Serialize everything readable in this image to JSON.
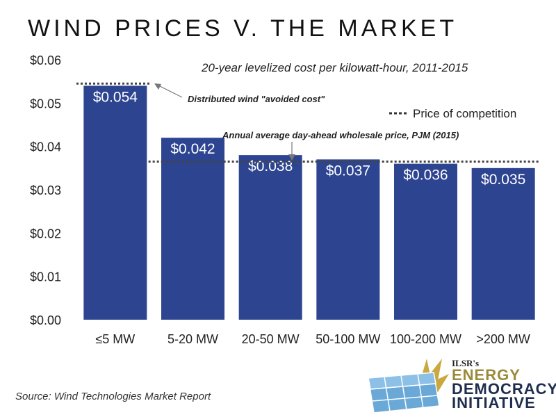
{
  "chart_data": {
    "type": "bar",
    "title": "WIND PRICES V. THE MARKET",
    "subtitle": "20-year levelized cost per kilowatt-hour, 2011-2015",
    "categories": [
      "≤5 MW",
      "5-20 MW",
      "20-50 MW",
      "50-100 MW",
      "100-200 MW",
      ">200 MW"
    ],
    "values": [
      0.054,
      0.042,
      0.038,
      0.037,
      0.036,
      0.035
    ],
    "data_labels": [
      "$0.054",
      "$0.042",
      "$0.038",
      "$0.037",
      "$0.036",
      "$0.035"
    ],
    "xlabel": "",
    "ylabel": "",
    "ylim": [
      0,
      0.06
    ],
    "yticks": [
      0,
      0.01,
      0.02,
      0.03,
      0.04,
      0.05,
      0.06
    ],
    "ytick_labels": [
      "$0.00",
      "$0.01",
      "$0.02",
      "$0.03",
      "$0.04",
      "$0.05",
      "$0.06"
    ],
    "grid": false,
    "bar_color": "#2d4491",
    "reference_lines": [
      {
        "name": "Distributed wind \"avoided cost\"",
        "value": 0.0545,
        "spans": "≤5 MW"
      },
      {
        "name": "Annual average day-ahead wholesale price, PJM (2015)",
        "value": 0.0365,
        "spans": "5-20 MW to >200 MW"
      }
    ],
    "legend": {
      "entries": [
        "Price of competition"
      ],
      "position": "top-right",
      "style": "dotted"
    },
    "annotations": [
      "Distributed wind \"avoided cost\"",
      "Annual average day-ahead wholesale price, PJM (2015)"
    ]
  },
  "source": "Source: Wind Technologies Market Report",
  "logo": {
    "org": "ILSR's",
    "line1": "ENERGY",
    "line2": "DEMOCRACY",
    "line3": "INITIATIVE",
    "gold": "#b59a3c",
    "navy": "#1f2d4f"
  }
}
